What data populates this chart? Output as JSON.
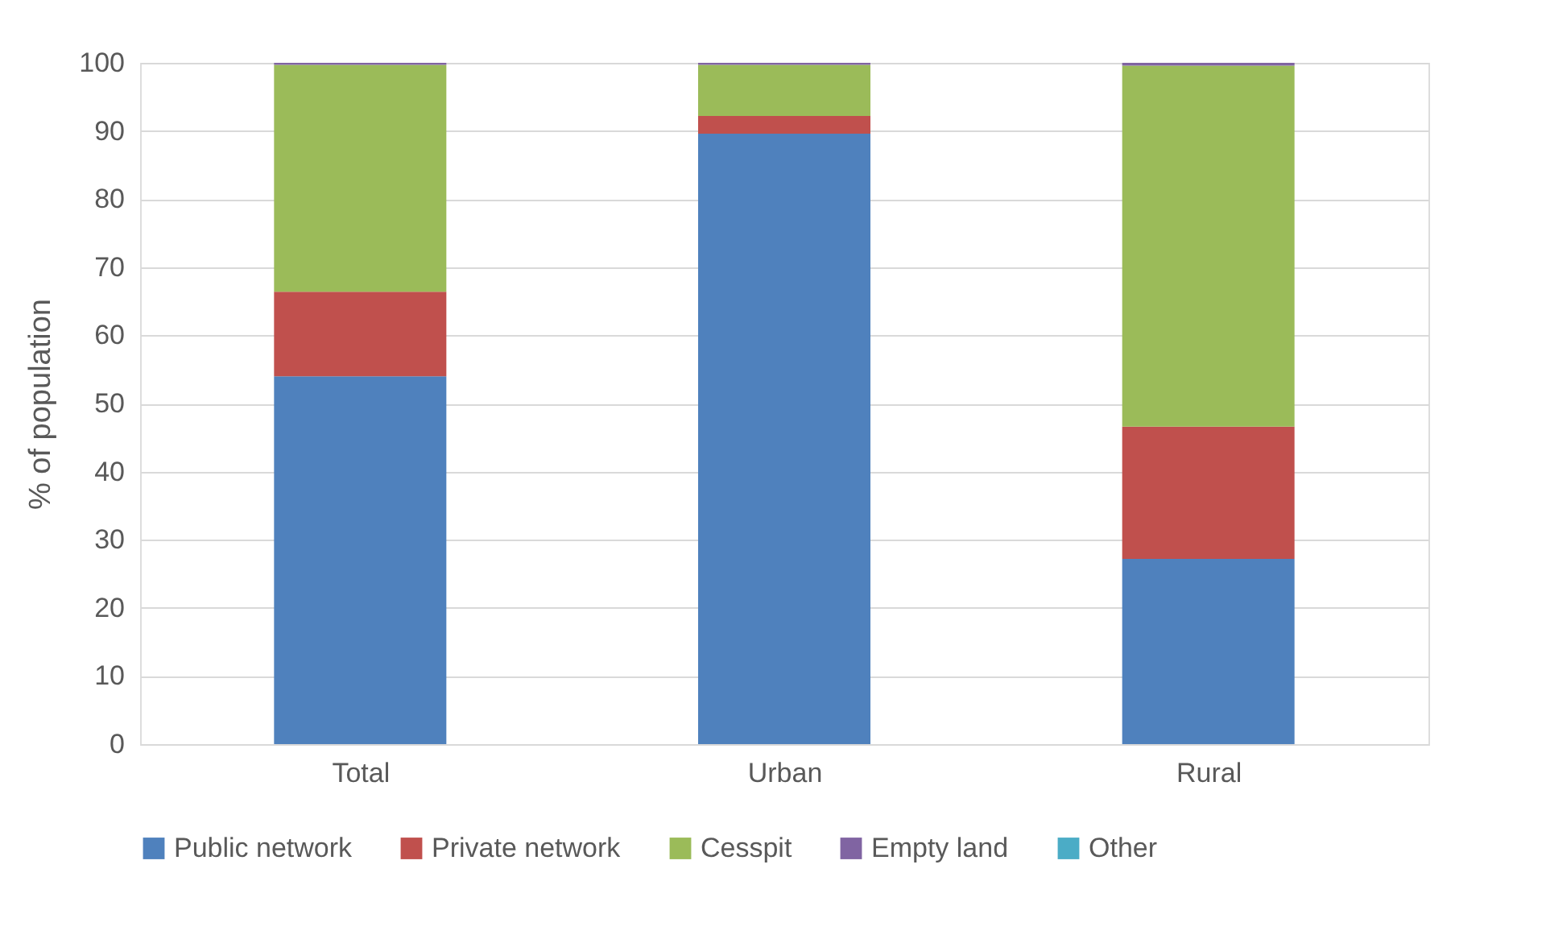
{
  "chart_data": {
    "type": "bar",
    "stacked": true,
    "ylabel": "% of population",
    "categories": [
      "Total",
      "Urban",
      "Rural"
    ],
    "series": [
      {
        "name": "Public network",
        "color": "#4f81bd",
        "values": [
          54,
          89.6,
          27.2
        ]
      },
      {
        "name": "Private network",
        "color": "#c0504d",
        "values": [
          12.4,
          2.6,
          19.4
        ]
      },
      {
        "name": "Cesspit",
        "color": "#9bbb59",
        "values": [
          33.3,
          7.5,
          53
        ]
      },
      {
        "name": "Empty land",
        "color": "#8064a2",
        "values": [
          0.3,
          0.3,
          0.4
        ]
      },
      {
        "name": "Other",
        "color": "#4bacc6",
        "values": [
          0,
          0,
          0
        ]
      }
    ],
    "ylim": [
      0,
      100
    ],
    "yticks": [
      0,
      10,
      20,
      30,
      40,
      50,
      60,
      70,
      80,
      90,
      100
    ],
    "grid": "y",
    "legend": "bottom"
  }
}
